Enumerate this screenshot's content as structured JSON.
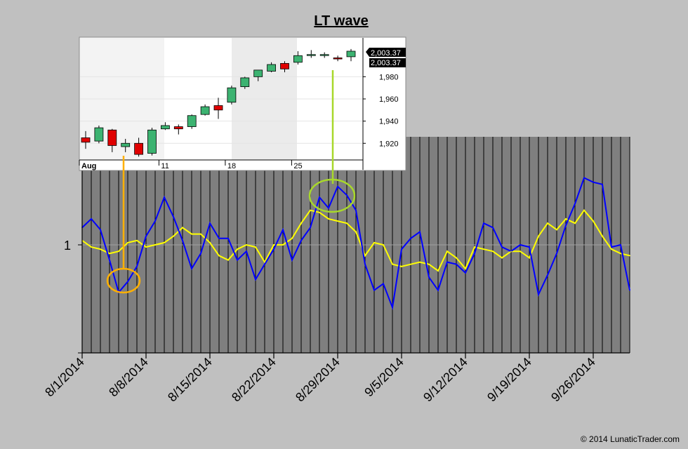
{
  "chart_data": [
    {
      "type": "line",
      "title": "LT wave",
      "xlabel": "",
      "ylabel": "",
      "x_tick_labels": [
        "8/1/2014",
        "8/8/2014",
        "8/15/2014",
        "8/22/2014",
        "8/29/2014",
        "9/5/2014",
        "9/12/2014",
        "9/19/2014",
        "9/26/2014"
      ],
      "y_tick_labels": [
        "1"
      ],
      "ylim": [
        0.5,
        1.5
      ],
      "grid": true,
      "series": [
        {
          "color": "#0000ff",
          "values": [
            1.08,
            1.12,
            1.07,
            0.93,
            0.78,
            0.83,
            0.9,
            1.04,
            1.11,
            1.22,
            1.13,
            1.02,
            0.89,
            0.96,
            1.1,
            1.03,
            1.03,
            0.93,
            0.97,
            0.84,
            0.91,
            0.98,
            1.07,
            0.93,
            1.02,
            1.08,
            1.22,
            1.17,
            1.27,
            1.23,
            1.16,
            0.91,
            0.79,
            0.82,
            0.71,
            0.98,
            1.03,
            1.06,
            0.85,
            0.79,
            0.92,
            0.91,
            0.87,
            0.96,
            1.1,
            1.08,
            0.99,
            0.97,
            1.0,
            0.99,
            0.77,
            0.86,
            0.96,
            1.09,
            1.19,
            1.31,
            1.29,
            1.28,
            0.99,
            1.0,
            0.79
          ]
        },
        {
          "color": "#ffff00",
          "values": [
            1.02,
            0.99,
            0.98,
            0.96,
            0.97,
            1.01,
            1.02,
            0.99,
            1.0,
            1.01,
            1.04,
            1.08,
            1.05,
            1.05,
            1.01,
            0.95,
            0.93,
            0.98,
            1.0,
            0.99,
            0.92,
            1.0,
            1.0,
            1.03,
            1.1,
            1.16,
            1.15,
            1.12,
            1.11,
            1.1,
            1.06,
            0.95,
            1.01,
            1.0,
            0.91,
            0.9,
            0.91,
            0.92,
            0.91,
            0.88,
            0.97,
            0.94,
            0.89,
            0.99,
            0.98,
            0.97,
            0.94,
            0.97,
            0.97,
            0.94,
            1.04,
            1.1,
            1.07,
            1.12,
            1.1,
            1.16,
            1.11,
            1.04,
            0.98,
            0.96,
            0.95
          ]
        }
      ]
    },
    {
      "type": "candlestick",
      "x_tick_labels": [
        "Aug",
        "11",
        "18",
        "25"
      ],
      "y_tick_labels": [
        "1,920",
        "1,940",
        "1,960",
        "1,980"
      ],
      "ylim": [
        1905,
        2015
      ],
      "last_value_labels": [
        "2,003.37",
        "2,003.37"
      ],
      "up_color": "#3cb371",
      "down_color": "#e00000",
      "candles": [
        {
          "o": 1925,
          "h": 1931,
          "l": 1915,
          "c": 1921
        },
        {
          "o": 1922,
          "h": 1936,
          "l": 1920,
          "c": 1934
        },
        {
          "o": 1932,
          "h": 1933,
          "l": 1912,
          "c": 1918
        },
        {
          "o": 1917,
          "h": 1924,
          "l": 1912,
          "c": 1920
        },
        {
          "o": 1920,
          "h": 1925,
          "l": 1908,
          "c": 1910
        },
        {
          "o": 1911,
          "h": 1934,
          "l": 1909,
          "c": 1932
        },
        {
          "o": 1933,
          "h": 1939,
          "l": 1932,
          "c": 1936
        },
        {
          "o": 1935,
          "h": 1937,
          "l": 1928,
          "c": 1933
        },
        {
          "o": 1935,
          "h": 1946,
          "l": 1933,
          "c": 1945
        },
        {
          "o": 1946,
          "h": 1955,
          "l": 1945,
          "c": 1953
        },
        {
          "o": 1954,
          "h": 1961,
          "l": 1942,
          "c": 1950
        },
        {
          "o": 1957,
          "h": 1972,
          "l": 1955,
          "c": 1970
        },
        {
          "o": 1971,
          "h": 1980,
          "l": 1969,
          "c": 1979
        },
        {
          "o": 1980,
          "h": 1986,
          "l": 1976,
          "c": 1986
        },
        {
          "o": 1985,
          "h": 1993,
          "l": 1984,
          "c": 1991
        },
        {
          "o": 1992,
          "h": 1994,
          "l": 1984,
          "c": 1987
        },
        {
          "o": 1993,
          "h": 2003,
          "l": 1991,
          "c": 1999
        },
        {
          "o": 2000,
          "h": 2004,
          "l": 1997,
          "c": 2000
        },
        {
          "o": 2000,
          "h": 2002,
          "l": 1997,
          "c": 2000
        },
        {
          "o": 1997,
          "h": 1999,
          "l": 1994,
          "c": 1996
        },
        {
          "o": 1998,
          "h": 2005,
          "l": 1994,
          "c": 2003
        }
      ]
    }
  ],
  "copyright": "© 2014 LunaticTrader.com"
}
